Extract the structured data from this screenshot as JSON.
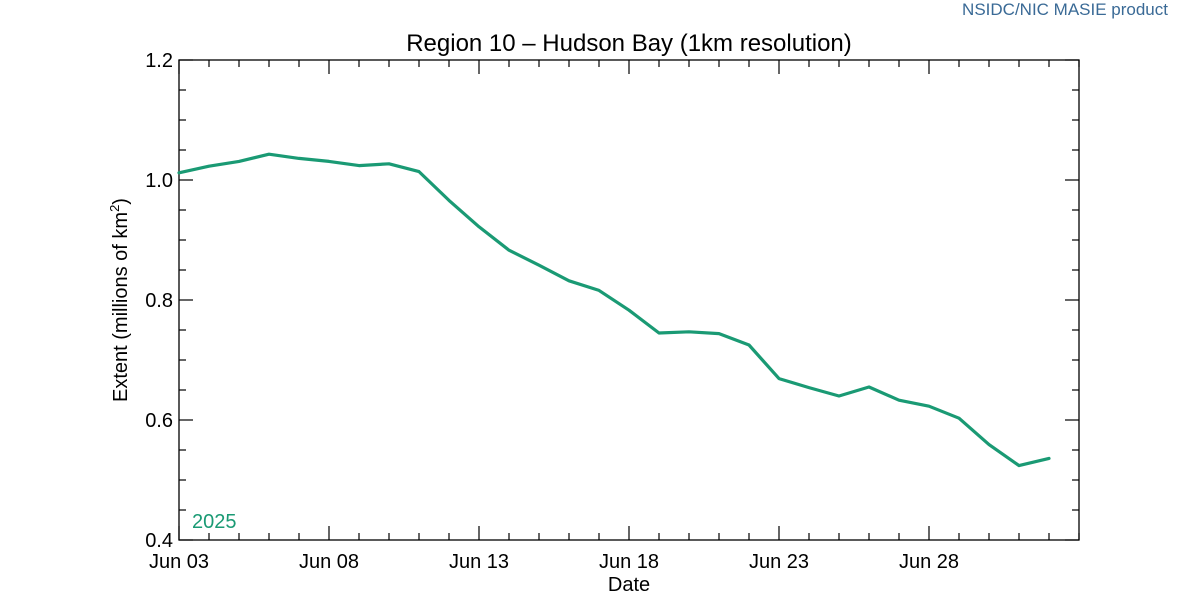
{
  "credit": "NSIDC/NIC MASIE product",
  "colors": {
    "series": "#1a9a74",
    "credit": "#3a6a96",
    "axis": "#000000",
    "background": "#ffffff"
  },
  "chart_data": {
    "type": "line",
    "title": "Region 10 – Hudson Bay (1km resolution)",
    "xlabel": "Date",
    "ylabel_main": "Extent (millions of km",
    "ylabel_sup": "2",
    "ylabel_end": ")",
    "ylim": [
      0.4,
      1.2
    ],
    "y_ticks": [
      0.4,
      0.6,
      0.8,
      1.0,
      1.2
    ],
    "y_tick_labels": [
      "0.4",
      "0.6",
      "0.8",
      "1.0",
      "1.2"
    ],
    "x_range": [
      "2025-06-03",
      "2025-07-03"
    ],
    "x_ticks": [
      "2025-06-03",
      "2025-06-08",
      "2025-06-13",
      "2025-06-18",
      "2025-06-23",
      "2025-06-28"
    ],
    "x_tick_labels": [
      "Jun 03",
      "Jun 08",
      "Jun 13",
      "Jun 18",
      "Jun 23",
      "Jun 28"
    ],
    "grid": false,
    "series": [
      {
        "name": "2025",
        "x": [
          "2025-06-03",
          "2025-06-04",
          "2025-06-05",
          "2025-06-06",
          "2025-06-07",
          "2025-06-08",
          "2025-06-09",
          "2025-06-10",
          "2025-06-11",
          "2025-06-12",
          "2025-06-13",
          "2025-06-14",
          "2025-06-15",
          "2025-06-16",
          "2025-06-17",
          "2025-06-18",
          "2025-06-19",
          "2025-06-20",
          "2025-06-21",
          "2025-06-22",
          "2025-06-23",
          "2025-06-24",
          "2025-06-25",
          "2025-06-26",
          "2025-06-27",
          "2025-06-28",
          "2025-06-29",
          "2025-06-30",
          "2025-07-01",
          "2025-07-02"
        ],
        "values": [
          1.012,
          1.023,
          1.031,
          1.043,
          1.036,
          1.031,
          1.024,
          1.027,
          1.014,
          0.966,
          0.922,
          0.883,
          0.858,
          0.832,
          0.816,
          0.783,
          0.745,
          0.747,
          0.744,
          0.725,
          0.669,
          0.654,
          0.64,
          0.655,
          0.633,
          0.623,
          0.603,
          0.559,
          0.524,
          0.536
        ]
      }
    ]
  }
}
